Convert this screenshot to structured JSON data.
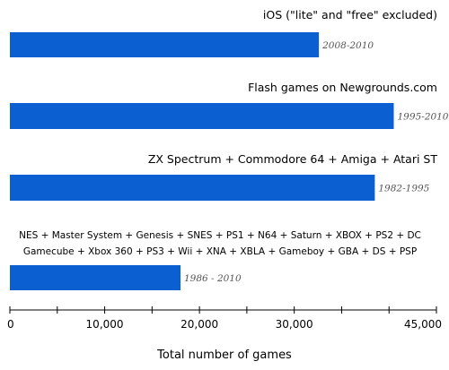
{
  "chart_data": {
    "type": "bar",
    "orientation": "horizontal",
    "xlabel": "Total number of games",
    "xlim": [
      0,
      45000
    ],
    "x_ticks": [
      "0",
      "10,000",
      "20,000",
      "30,000",
      "45,000"
    ],
    "x_tick_values": [
      0,
      10000,
      20000,
      30000,
      45000
    ],
    "grid": false,
    "bar_color": "#0b5fd1",
    "bars": [
      {
        "label_lines": [
          "iOS (\"lite\" and \"free\" excluded)"
        ],
        "value": 32600,
        "period": "2008-2010"
      },
      {
        "label_lines": [
          "Flash games on Newgrounds.com"
        ],
        "value": 40500,
        "period": "1995-2010"
      },
      {
        "label_lines": [
          "ZX Spectrum + Commodore 64 + Amiga + Atari ST"
        ],
        "value": 38500,
        "period": "1982-1995"
      },
      {
        "label_lines": [
          "NES + Master System + Genesis + SNES + PS1 + N64 + Saturn + XBOX + PS2 + DC",
          "Gamecube + Xbox 360 + PS3 + Wii + XNA + XBLA + Gameboy + GBA + DS + PSP"
        ],
        "value": 18000,
        "period": "1986 - 2010"
      }
    ]
  }
}
